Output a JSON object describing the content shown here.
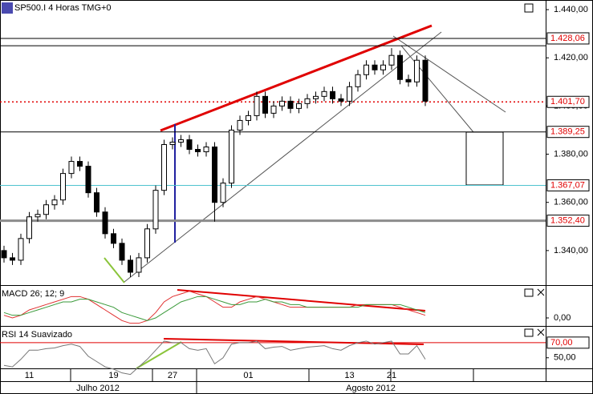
{
  "chart_data": [
    {
      "type": "candlestick",
      "title": "SP500.I 4 Horas TMG+0",
      "categories": [
        null,
        null,
        null,
        "11",
        null,
        null,
        null,
        null,
        null,
        null,
        null,
        null,
        null,
        "19",
        null,
        null,
        null,
        null,
        null,
        null,
        "27",
        null,
        null,
        null,
        null,
        null,
        null,
        null,
        null,
        "01",
        null,
        null,
        null,
        null,
        null,
        null,
        null,
        null,
        null,
        null,
        null,
        "13",
        null,
        null,
        null,
        null,
        "21",
        null,
        null,
        null,
        null
      ],
      "months": [
        "Julho 2012",
        "Agosto 2012"
      ],
      "open": [
        1340,
        1337,
        1336,
        1345,
        1354,
        1355,
        1359,
        1361,
        1372,
        1377,
        1375,
        1364,
        1356,
        1347,
        1343,
        1336,
        1331,
        1337,
        1349,
        1365,
        1384,
        1385,
        1386,
        1382,
        1381,
        1383,
        1360,
        1368,
        1390,
        1394,
        1396,
        1404,
        1397,
        1400,
        1402,
        1399,
        1401,
        1403,
        1404,
        1406,
        1403,
        1402,
        1408,
        1413,
        1417,
        1415,
        1417,
        1421,
        1411,
        1410,
        1419
      ],
      "high": [
        1342,
        1339,
        1347,
        1356,
        1357,
        1361,
        1363,
        1374,
        1379,
        1379,
        1377,
        1366,
        1358,
        1349,
        1345,
        1338,
        1339,
        1351,
        1367,
        1386,
        1387,
        1388,
        1388,
        1384,
        1385,
        1385,
        1370,
        1392,
        1396,
        1398,
        1406,
        1406,
        1402,
        1404,
        1404,
        1403,
        1405,
        1406,
        1408,
        1408,
        1405,
        1410,
        1415,
        1419,
        1419,
        1419,
        1424,
        1423,
        1413,
        1421,
        1421
      ],
      "low": [
        1335,
        1334,
        1334,
        1343,
        1352,
        1353,
        1357,
        1359,
        1370,
        1373,
        1362,
        1354,
        1345,
        1341,
        1334,
        1329,
        1329,
        1335,
        1347,
        1363,
        1382,
        1383,
        1380,
        1379,
        1379,
        1352,
        1358,
        1366,
        1388,
        1392,
        1394,
        1395,
        1395,
        1398,
        1397,
        1397,
        1399,
        1401,
        1402,
        1401,
        1400,
        1400,
        1406,
        1411,
        1413,
        1413,
        1415,
        1409,
        1408,
        1408,
        1400
      ],
      "close": [
        1337,
        1336,
        1345,
        1354,
        1355,
        1359,
        1361,
        1372,
        1377,
        1375,
        1364,
        1356,
        1347,
        1343,
        1336,
        1331,
        1337,
        1349,
        1365,
        1384,
        1385,
        1386,
        1382,
        1381,
        1383,
        1360,
        1368,
        1390,
        1394,
        1396,
        1404,
        1397,
        1400,
        1402,
        1399,
        1401,
        1403,
        1404,
        1406,
        1403,
        1402,
        1408,
        1413,
        1417,
        1415,
        1417,
        1421,
        1411,
        1410,
        1419,
        1402
      ],
      "ylim": [
        1326,
        1444
      ],
      "yticks": [
        {
          "value": 1340,
          "label": "1.340,00"
        },
        {
          "value": 1360,
          "label": "1.360,00"
        },
        {
          "value": 1380,
          "label": "1.380,00"
        },
        {
          "value": 1400,
          "label": "1.400,00"
        },
        {
          "value": 1420,
          "label": "1.420,00"
        },
        {
          "value": 1440,
          "label": "1.440,00"
        }
      ],
      "levels": [
        {
          "value": 1428.06,
          "label": "1.428,06",
          "color": "#000000",
          "width": 1
        },
        {
          "value": 1425,
          "color": "#000000",
          "width": 1
        },
        {
          "value": 1401.7,
          "label": "1.401,70",
          "color": "#e00000",
          "width": 1.5,
          "dash": "2,3"
        },
        {
          "value": 1389.25,
          "label": "1.389,25",
          "color": "#000000",
          "width": 1
        },
        {
          "value": 1367.07,
          "label": "1.367,07",
          "color": "#4fc3cf",
          "width": 1
        },
        {
          "value": 1352.4,
          "label": "1.352,40",
          "color": "#8c8c8c",
          "width": 3
        }
      ]
    },
    {
      "type": "line",
      "title": "MACD 26; 12; 9",
      "series": [
        {
          "color": "#e03030",
          "values": [
            1,
            0,
            1,
            3,
            4,
            5,
            6,
            7,
            8,
            8,
            7,
            5,
            3,
            1,
            -1,
            -2,
            -2,
            -1,
            2,
            6,
            8,
            9,
            10,
            9,
            8,
            6,
            4,
            4,
            6,
            7,
            8,
            7,
            6,
            5,
            4,
            4,
            4,
            4,
            4,
            4,
            4,
            4,
            5,
            5,
            5,
            5,
            5,
            4,
            3,
            2,
            1
          ]
        },
        {
          "color": "#3a9a3a",
          "values": [
            2,
            1,
            1,
            2,
            3,
            4,
            5,
            6,
            6,
            7,
            7,
            6,
            5,
            4,
            2,
            1,
            0,
            -1,
            0,
            2,
            4,
            6,
            7,
            8,
            8,
            7,
            6,
            5,
            5,
            6,
            6,
            7,
            6,
            6,
            5,
            5,
            4,
            4,
            4,
            4,
            4,
            4,
            4,
            5,
            5,
            5,
            5,
            5,
            4,
            3,
            2
          ]
        }
      ],
      "ylim": [
        -3,
        12
      ],
      "yticks": [
        {
          "value": 0,
          "label": "0,00"
        }
      ]
    },
    {
      "type": "line",
      "title": "RSI 14 Suavizado",
      "series": [
        {
          "color": "#777777",
          "values": [
            40,
            38,
            48,
            60,
            60,
            62,
            63,
            66,
            68,
            65,
            52,
            45,
            38,
            35,
            30,
            28,
            38,
            48,
            60,
            72,
            70,
            70,
            62,
            60,
            62,
            42,
            50,
            68,
            70,
            70,
            72,
            62,
            64,
            65,
            60,
            62,
            64,
            65,
            66,
            62,
            60,
            66,
            70,
            72,
            68,
            70,
            72,
            55,
            55,
            66,
            48
          ]
        }
      ],
      "ylim": [
        36,
        91
      ],
      "yticks": [
        {
          "value": 50,
          "label": "50,00"
        }
      ],
      "levels": [
        {
          "value": 70,
          "label": "70,00",
          "color": "#e00000",
          "width": 1
        }
      ]
    }
  ]
}
